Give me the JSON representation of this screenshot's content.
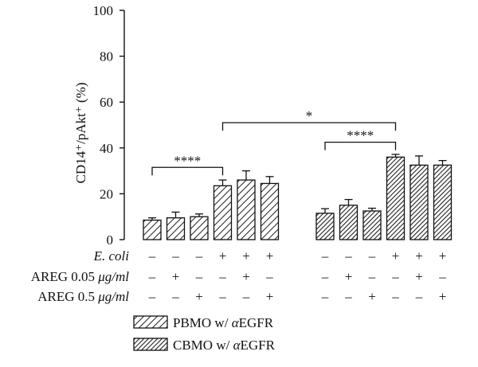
{
  "chart_data": {
    "type": "bar",
    "ylabel": "CD14⁺/pAkt⁺ (%)",
    "ylim": [
      0,
      100
    ],
    "yticks": [
      "0",
      "20",
      "40",
      "60",
      "80",
      "100"
    ],
    "groups": [
      {
        "name": "PBMO w/ αEGFR",
        "fill": "hatch-sparse",
        "values": [
          8.5,
          9.5,
          10.0,
          23.5,
          26.0,
          24.5
        ],
        "errors": [
          1.0,
          2.5,
          1.2,
          2.5,
          4.0,
          3.0
        ]
      },
      {
        "name": "CBMO w/ αEGFR",
        "fill": "hatch-dense",
        "values": [
          11.5,
          15.0,
          12.5,
          36.0,
          32.5,
          32.5
        ],
        "errors": [
          2.0,
          2.5,
          1.2,
          1.2,
          4.0,
          2.0
        ]
      }
    ],
    "conditions": [
      {
        "label": "E. coli",
        "italic_label": true,
        "signs": [
          "–",
          "–",
          "–",
          "+",
          "+",
          "+"
        ]
      },
      {
        "label_main": "AREG 0.05 ",
        "label_unit": "μg/ml",
        "signs": [
          "–",
          "+",
          "–",
          "–",
          "+",
          "–"
        ]
      },
      {
        "label_main": "AREG 0.5 ",
        "label_unit": "μg/ml",
        "signs": [
          "–",
          "–",
          "+",
          "–",
          "–",
          "+"
        ]
      }
    ],
    "significance": [
      {
        "label": "****",
        "from_group": 0,
        "from_bar": 0,
        "to_group": 0,
        "to_bar": 3,
        "y": 31.5
      },
      {
        "label": "****",
        "from_group": 1,
        "from_bar": 0,
        "to_group": 1,
        "to_bar": 3,
        "y": 42.5
      },
      {
        "label": "*",
        "from_group": 0,
        "from_bar": 3,
        "to_group": 1,
        "to_bar": 3,
        "y": 51.0
      }
    ],
    "legend": {
      "position": "bottom-center",
      "entries": [
        "PBMO w/ αEGFR",
        "CBMO w/ αEGFR"
      ]
    }
  }
}
